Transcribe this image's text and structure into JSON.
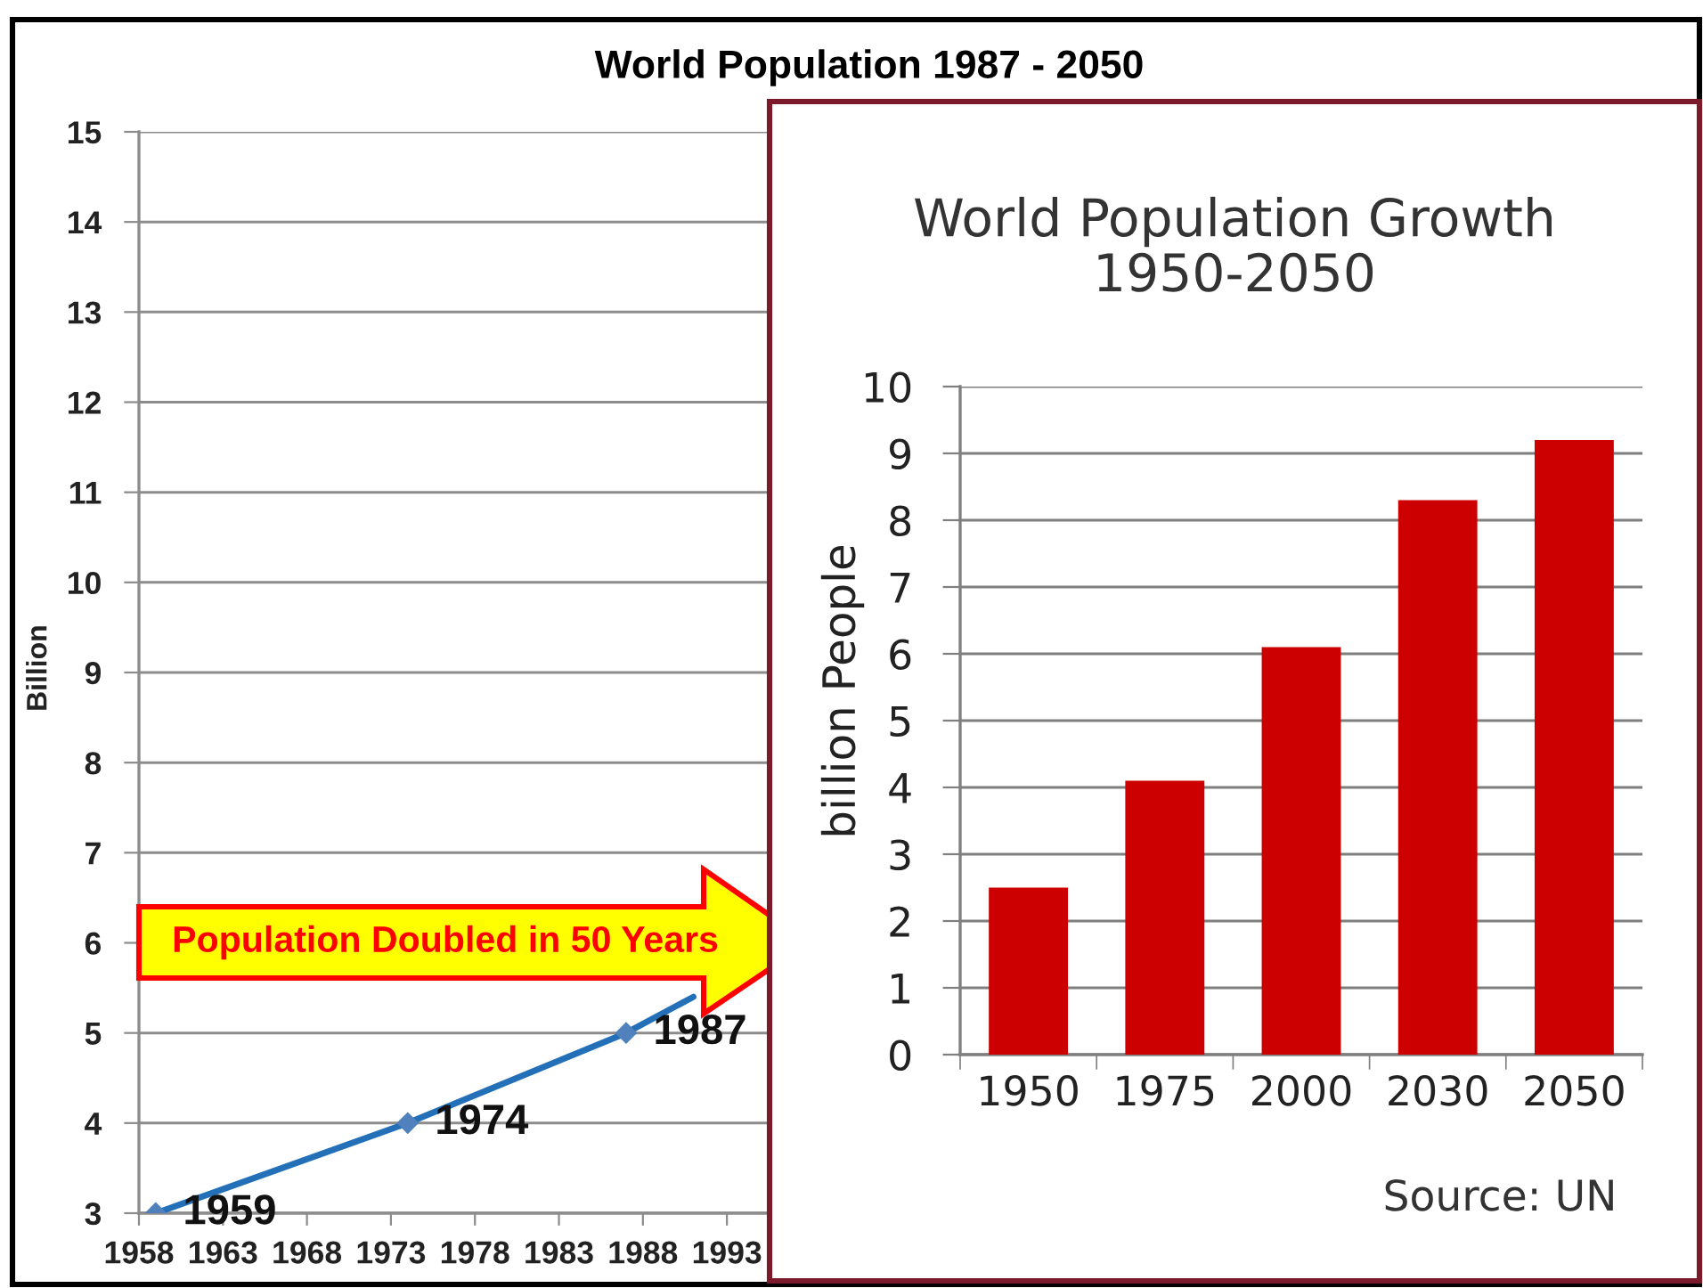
{
  "chart_data": [
    {
      "type": "line",
      "title": "World Population 1987 - 2050",
      "ylabel": "Billion",
      "xlim": [
        1958,
        2050
      ],
      "xticks": [
        1958,
        1963,
        1968,
        1973,
        1978,
        1983,
        1988,
        1993
      ],
      "ylim": [
        3,
        15
      ],
      "yticks": [
        3,
        4,
        5,
        6,
        7,
        8,
        9,
        10,
        11,
        12,
        13,
        14,
        15
      ],
      "grid": "y",
      "series": [
        {
          "type": "line",
          "color": "#2370b8",
          "marker": "none",
          "x": [
            1959,
            1974,
            1987,
            1991
          ],
          "values": [
            3,
            4,
            5,
            5.4
          ]
        },
        {
          "type": "scatter",
          "color": "#5081bc",
          "marker": "diamond",
          "x": [
            1959,
            1974,
            1987
          ],
          "values": [
            3,
            4,
            5
          ]
        }
      ],
      "annotations": [
        {
          "text": "1959",
          "x": 1959,
          "y": 3
        },
        {
          "text": "1974",
          "x": 1974,
          "y": 4
        },
        {
          "text": "1987",
          "x": 1987,
          "y": 5
        },
        "Population Doubled in 50 Years"
      ]
    },
    {
      "type": "bar",
      "title": "World Population Growth\n1950-2050",
      "ylabel": "billion People",
      "categories": [
        "1950",
        "1975",
        "2000",
        "2030",
        "2050"
      ],
      "values": [
        2.5,
        4.1,
        6.1,
        8.3,
        9.2
      ],
      "color": "#cc0000",
      "ylim": [
        0,
        10
      ],
      "yticks": [
        0,
        1,
        2,
        3,
        4,
        5,
        6,
        7,
        8,
        9,
        10
      ],
      "grid": "y",
      "annotations": [
        "Source: UN"
      ]
    }
  ]
}
